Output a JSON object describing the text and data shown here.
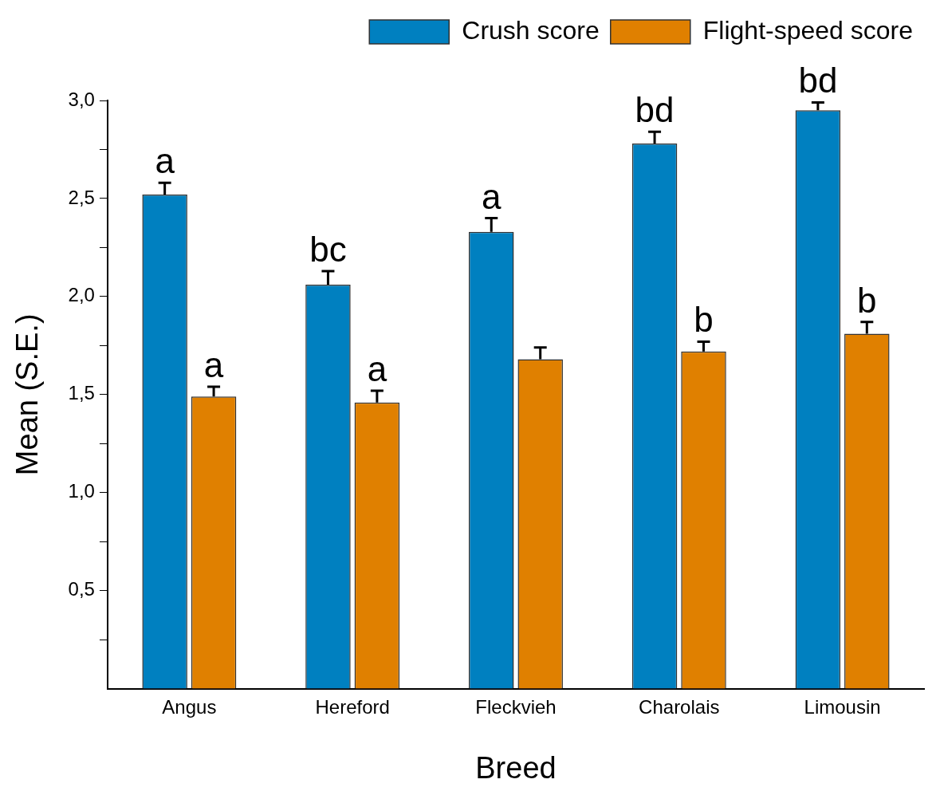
{
  "chart_data": {
    "type": "bar",
    "xlabel": "Breed",
    "ylabel": "Mean (S.E.)",
    "categories": [
      "Angus",
      "Hereford",
      "Fleckvieh",
      "Charolais",
      "Limousin"
    ],
    "series": [
      {
        "name": "Crush score",
        "color": "#0080c0",
        "values": [
          2.52,
          2.06,
          2.33,
          2.78,
          2.95
        ],
        "errors": [
          [
            2.52,
            2.58
          ],
          [
            2.06,
            2.13
          ],
          [
            2.33,
            2.4
          ],
          [
            2.78,
            2.84
          ],
          [
            2.95,
            2.99
          ]
        ]
      },
      {
        "name": "Flight-speed score",
        "color": "#e08000",
        "values": [
          1.49,
          1.46,
          1.68,
          1.72,
          1.81
        ],
        "errors": [
          [
            1.49,
            1.54
          ],
          [
            1.46,
            1.52
          ],
          [
            1.68,
            1.74
          ],
          [
            1.72,
            1.77
          ],
          [
            1.81,
            1.87
          ]
        ]
      }
    ],
    "ylim": [
      0,
      3
    ],
    "yticks": [
      {
        "value": 0.25,
        "label": null
      },
      {
        "value": 0.5,
        "label": "0,5"
      },
      {
        "value": 0.75,
        "label": null
      },
      {
        "value": 1,
        "label": "1,0"
      },
      {
        "value": 1.25,
        "label": null
      },
      {
        "value": 1.5,
        "label": "1,5"
      },
      {
        "value": 1.75,
        "label": null
      },
      {
        "value": 2,
        "label": "2,0"
      },
      {
        "value": 2.25,
        "label": null
      },
      {
        "value": 2.5,
        "label": "2,5"
      },
      {
        "value": 2.75,
        "label": null
      },
      {
        "value": 3,
        "label": "3,0"
      }
    ],
    "annotations": [
      {
        "text": "a",
        "x": "Angus",
        "y": 2.52
      },
      {
        "text": "a",
        "x": "Angus",
        "y": 1.49
      },
      {
        "text": "bc",
        "x": "Hereford",
        "y": 2.06
      },
      {
        "text": "a",
        "x": "Hereford",
        "y": 1.46
      },
      {
        "text": "a",
        "x": "Fleckvieh",
        "y": 2.33
      },
      {
        "text": "bd",
        "x": "Charolais",
        "y": 2.78
      },
      {
        "text": "b",
        "x": "Charolais",
        "y": 1.72
      },
      {
        "text": "bd",
        "x": "Limousin",
        "y": 2.95
      },
      {
        "text": "b",
        "x": "Limousin",
        "y": 1.81
      }
    ],
    "grid": false,
    "legend": "top right"
  }
}
